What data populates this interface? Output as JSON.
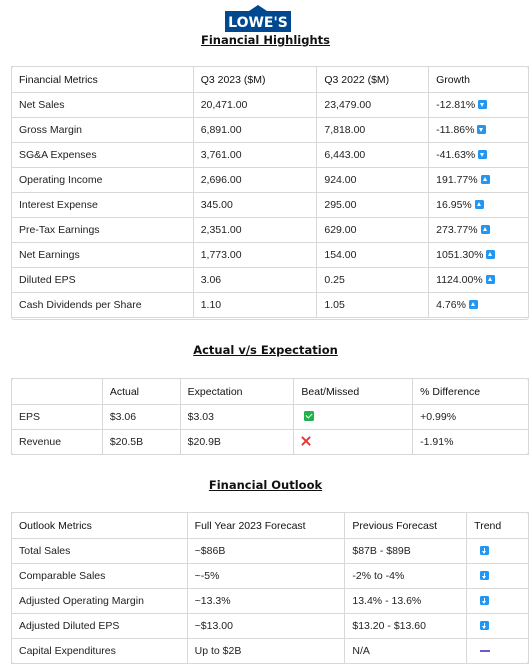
{
  "brand": {
    "logo_text": "LOWE'S",
    "color": "#004990"
  },
  "highlights": {
    "title": "Financial Highlights",
    "headers": [
      "Financial Metrics",
      "Q3 2023 ($M)",
      "Q3 2022 ($M)",
      "Growth"
    ],
    "rows": [
      {
        "metric": "Net Sales",
        "q3_2023": "20,471.00",
        "q3_2022": "23,479.00",
        "growth": "-12.81%",
        "trend": "down"
      },
      {
        "metric": "Gross Margin",
        "q3_2023": "6,891.00",
        "q3_2022": "7,818.00",
        "growth": "-11.86%",
        "trend": "down"
      },
      {
        "metric": "SG&A Expenses",
        "q3_2023": "3,761.00",
        "q3_2022": "6,443.00",
        "growth": "-41.63%",
        "trend": "down"
      },
      {
        "metric": "Operating Income",
        "q3_2023": "2,696.00",
        "q3_2022": "924.00",
        "growth": "191.77%",
        "trend": "up"
      },
      {
        "metric": "Interest Expense",
        "q3_2023": "345.00",
        "q3_2022": "295.00",
        "growth": "16.95%",
        "trend": "up"
      },
      {
        "metric": "Pre-Tax Earnings",
        "q3_2023": "2,351.00",
        "q3_2022": "629.00",
        "growth": "273.77%",
        "trend": "up"
      },
      {
        "metric": "Net Earnings",
        "q3_2023": "1,773.00",
        "q3_2022": "154.00",
        "growth": "1051.30%",
        "trend": "up"
      },
      {
        "metric": "Diluted EPS",
        "q3_2023": "3.06",
        "q3_2022": "0.25",
        "growth": "1124.00%",
        "trend": "up"
      },
      {
        "metric": "Cash Dividends per Share",
        "q3_2023": "1.10",
        "q3_2022": "1.05",
        "growth": "4.76%",
        "trend": "up"
      }
    ]
  },
  "expectation": {
    "title": "Actual v/s Expectation",
    "headers": [
      "",
      "Actual",
      "Expectation",
      "Beat/Missed",
      "% Difference"
    ],
    "rows": [
      {
        "label": "EPS",
        "actual": "$3.06",
        "expectation": "$3.03",
        "result": "beat",
        "diff": "+0.99%"
      },
      {
        "label": "Revenue",
        "actual": "$20.5B",
        "expectation": "$20.9B",
        "result": "missed",
        "diff": "-1.91%"
      }
    ]
  },
  "outlook": {
    "title": "Financial Outlook",
    "headers": [
      "Outlook Metrics",
      "Full Year 2023 Forecast",
      "Previous Forecast",
      "Trend"
    ],
    "rows": [
      {
        "metric": "Total Sales",
        "forecast": "~$86B",
        "previous": "$87B - $89B",
        "trend": "down"
      },
      {
        "metric": "Comparable Sales",
        "forecast": "~-5%",
        "previous": "-2% to -4%",
        "trend": "down"
      },
      {
        "metric": "Adjusted Operating Margin",
        "forecast": "~13.3%",
        "previous": "13.4% - 13.6%",
        "trend": "down"
      },
      {
        "metric": "Adjusted Diluted EPS",
        "forecast": "~$13.00",
        "previous": "$13.20 - $13.60",
        "trend": "down"
      },
      {
        "metric": "Capital Expenditures",
        "forecast": "Up to $2B",
        "previous": "N/A",
        "trend": "flat"
      }
    ]
  }
}
